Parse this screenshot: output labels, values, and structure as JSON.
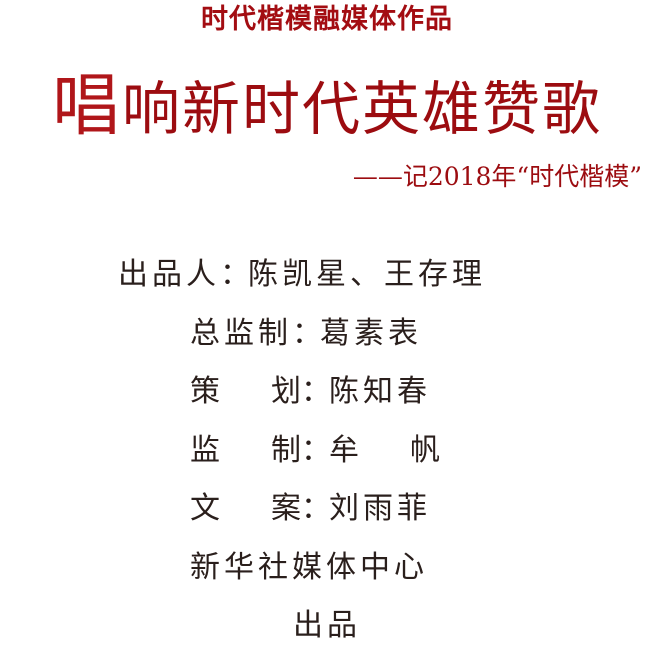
{
  "header": {
    "kicker": "时代楷模融媒体作品",
    "title_first_char": "唱",
    "title_rest": "响新时代英雄赞歌",
    "subtitle": "——记2018年“时代楷模”"
  },
  "credits": {
    "producer": {
      "role": "出品人",
      "colon": "：",
      "names": "陈凯星、王存理"
    },
    "chief_supervisor": {
      "role": "总监制",
      "colon": "：",
      "names": "葛素表"
    },
    "planner": {
      "role_a": "策",
      "role_b": "划",
      "colon": "：",
      "names": "陈知春"
    },
    "supervisor": {
      "role_a": "监",
      "role_b": "制",
      "colon": "：",
      "name_a": "牟",
      "name_b": "帆"
    },
    "copywriter": {
      "role_a": "文",
      "role_b": "案",
      "colon": "：",
      "names": "刘雨菲"
    },
    "organization": "新华社媒体中心",
    "produced": "出品"
  },
  "colors": {
    "title_red": "#9c0c10",
    "kicker_red": "#a30d12",
    "body_text": "#2a1f1c"
  }
}
